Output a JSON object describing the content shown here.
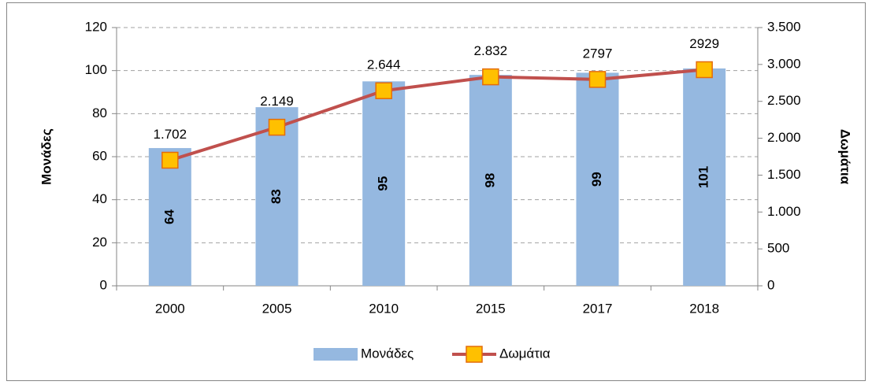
{
  "chart_data": {
    "type": "bar-line",
    "categories": [
      "2000",
      "2005",
      "2010",
      "2015",
      "2017",
      "2018"
    ],
    "series": [
      {
        "name": "Μονάδες",
        "color": "#95b8e0",
        "values": [
          64,
          83,
          95,
          98,
          99,
          101
        ]
      },
      {
        "name": "Δωμάτια",
        "color": "#c0504d",
        "marker_color": "#ffc000",
        "axis": "y2",
        "values": [
          1702,
          2149,
          2644,
          2832,
          2797,
          2929
        ],
        "value_labels": [
          "1.702",
          "2.149",
          "2.644",
          "2.832",
          "2797",
          "2929"
        ]
      }
    ],
    "ylabel": "Μονάδες",
    "y2label": "Δωμάτια",
    "ylim": [
      0,
      120
    ],
    "yticks": [
      0,
      20,
      40,
      60,
      80,
      100,
      120
    ],
    "y2lim": [
      0,
      3500
    ],
    "y2ticks": [
      0,
      500,
      {
        "value": 1000,
        "label": "1.000"
      },
      {
        "value": 1500,
        "label": "1.500"
      },
      {
        "value": 2000,
        "label": "2.000"
      },
      {
        "value": 2500,
        "label": "2.500"
      },
      {
        "value": 3000,
        "label": "3.000"
      },
      {
        "value": 3500,
        "label": "3.500"
      }
    ],
    "grid": true,
    "legend": "bottom"
  }
}
